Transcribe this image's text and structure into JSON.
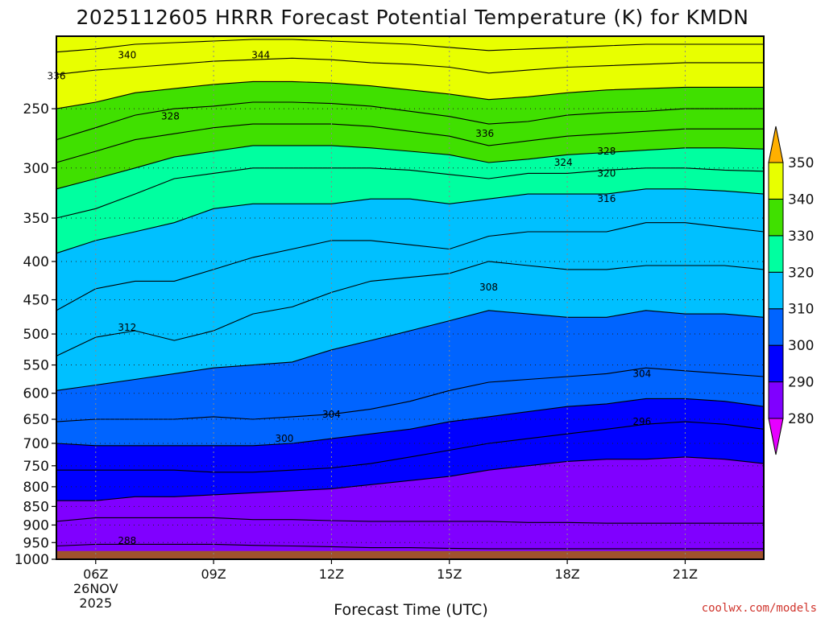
{
  "title": "2025112605 HRRR Forecast Potential Temperature (K) for KMDN",
  "credit": "coolwx.com/models",
  "colors": {
    "ground": "#a0522d",
    "bands": [
      "#e600ff",
      "#8000ff",
      "#0000ff",
      "#0064ff",
      "#00c0ff",
      "#00ffa0",
      "#40e000",
      "#e8ff00",
      "#ffb000"
    ]
  },
  "chart_data": {
    "type": "contour",
    "title": "2025112605 HRRR Forecast Potential Temperature (K) for KMDN",
    "xlabel": "Forecast Time (UTC)",
    "ylabel": "",
    "x_range_hours": [
      5,
      23
    ],
    "y_range_hpa": [
      200,
      1000
    ],
    "y_scale": "log",
    "x_ticks": [
      {
        "hour": 6,
        "label": "06Z"
      },
      {
        "hour": 9,
        "label": "09Z"
      },
      {
        "hour": 12,
        "label": "12Z"
      },
      {
        "hour": 15,
        "label": "15Z"
      },
      {
        "hour": 18,
        "label": "18Z"
      },
      {
        "hour": 21,
        "label": "21Z"
      }
    ],
    "x_date_lines": [
      "26NOV",
      "2025"
    ],
    "y_ticks": [
      250,
      300,
      350,
      400,
      450,
      500,
      550,
      600,
      650,
      700,
      750,
      800,
      850,
      900,
      950,
      1000
    ],
    "grid": true,
    "ground_level_hpa": 975,
    "colorbar": {
      "levels": [
        280,
        290,
        300,
        310,
        320,
        330,
        340,
        350
      ],
      "labels": [
        "280",
        "290",
        "300",
        "310",
        "320",
        "330",
        "340",
        "350"
      ],
      "extend": "both",
      "position": "right"
    },
    "contour_interval": 2,
    "profile_hours": [
      5,
      6,
      7,
      8,
      9,
      10,
      11,
      12,
      13,
      14,
      15,
      16,
      17,
      18,
      19,
      20,
      21,
      22,
      23
    ],
    "profile_levels_k": [
      282,
      286,
      290,
      295,
      300,
      304,
      308,
      312,
      316,
      320,
      324,
      328,
      332,
      336,
      340,
      344,
      348
    ],
    "profiles_hpa": [
      [
        960,
        890,
        835,
        760,
        700,
        655,
        595,
        535,
        465,
        390,
        350,
        320,
        295,
        275,
        250,
        225,
        210
      ],
      [
        955,
        880,
        835,
        760,
        705,
        650,
        585,
        505,
        435,
        375,
        340,
        310,
        285,
        265,
        245,
        222,
        208
      ],
      [
        955,
        880,
        825,
        760,
        705,
        650,
        575,
        495,
        425,
        365,
        325,
        300,
        275,
        255,
        238,
        220,
        205
      ],
      [
        955,
        880,
        825,
        760,
        705,
        650,
        565,
        510,
        425,
        355,
        310,
        290,
        270,
        250,
        235,
        218,
        204
      ],
      [
        955,
        880,
        820,
        765,
        705,
        645,
        555,
        495,
        410,
        340,
        305,
        285,
        265,
        248,
        232,
        216,
        203
      ],
      [
        958,
        885,
        815,
        765,
        705,
        650,
        550,
        470,
        395,
        335,
        300,
        280,
        262,
        245,
        230,
        215,
        202
      ],
      [
        960,
        885,
        810,
        760,
        700,
        645,
        545,
        460,
        385,
        335,
        300,
        280,
        262,
        245,
        230,
        214,
        202
      ],
      [
        962,
        888,
        805,
        755,
        690,
        640,
        525,
        440,
        375,
        335,
        300,
        280,
        262,
        246,
        231,
        215,
        203
      ],
      [
        965,
        890,
        795,
        745,
        680,
        630,
        510,
        425,
        375,
        330,
        300,
        282,
        264,
        248,
        233,
        217,
        204
      ],
      [
        965,
        890,
        785,
        730,
        670,
        615,
        495,
        420,
        380,
        330,
        302,
        285,
        268,
        252,
        236,
        218,
        205
      ],
      [
        967,
        890,
        775,
        715,
        655,
        595,
        480,
        415,
        385,
        335,
        306,
        288,
        272,
        256,
        239,
        220,
        207
      ],
      [
        968,
        890,
        760,
        700,
        645,
        580,
        465,
        400,
        370,
        330,
        310,
        295,
        280,
        262,
        243,
        224,
        209
      ],
      [
        968,
        893,
        750,
        690,
        635,
        575,
        470,
        405,
        365,
        325,
        305,
        292,
        276,
        260,
        241,
        222,
        208
      ],
      [
        968,
        893,
        740,
        680,
        625,
        570,
        475,
        410,
        365,
        325,
        305,
        288,
        272,
        255,
        238,
        220,
        207
      ],
      [
        968,
        895,
        735,
        670,
        620,
        565,
        475,
        410,
        365,
        325,
        302,
        286,
        270,
        253,
        236,
        219,
        206
      ],
      [
        968,
        895,
        735,
        660,
        610,
        555,
        465,
        405,
        355,
        320,
        300,
        284,
        268,
        252,
        235,
        218,
        205
      ],
      [
        968,
        895,
        730,
        655,
        610,
        560,
        470,
        405,
        355,
        320,
        300,
        282,
        266,
        250,
        234,
        217,
        205
      ],
      [
        968,
        895,
        735,
        660,
        615,
        565,
        470,
        405,
        360,
        322,
        302,
        282,
        266,
        250,
        234,
        217,
        205
      ],
      [
        968,
        895,
        745,
        670,
        625,
        570,
        475,
        410,
        365,
        325,
        303,
        283,
        266,
        250,
        234,
        217,
        205
      ]
    ],
    "contour_labels": [
      {
        "text": "340",
        "hour": 6.8,
        "hpa": 212
      },
      {
        "text": "344",
        "hour": 10.2,
        "hpa": 212
      },
      {
        "text": "336",
        "hour": 5.0,
        "hpa": 226
      },
      {
        "text": "328",
        "hour": 7.9,
        "hpa": 256
      },
      {
        "text": "336",
        "hour": 15.9,
        "hpa": 270
      },
      {
        "text": "328",
        "hour": 19.0,
        "hpa": 285
      },
      {
        "text": "324",
        "hour": 17.9,
        "hpa": 295
      },
      {
        "text": "320",
        "hour": 19.0,
        "hpa": 305
      },
      {
        "text": "316",
        "hour": 19.0,
        "hpa": 330
      },
      {
        "text": "308",
        "hour": 16.0,
        "hpa": 433
      },
      {
        "text": "312",
        "hour": 6.8,
        "hpa": 490
      },
      {
        "text": "304",
        "hour": 19.9,
        "hpa": 565
      },
      {
        "text": "304",
        "hour": 12.0,
        "hpa": 640
      },
      {
        "text": "296",
        "hour": 19.9,
        "hpa": 655
      },
      {
        "text": "300",
        "hour": 10.8,
        "hpa": 690
      },
      {
        "text": "288",
        "hour": 6.8,
        "hpa": 945
      }
    ]
  }
}
